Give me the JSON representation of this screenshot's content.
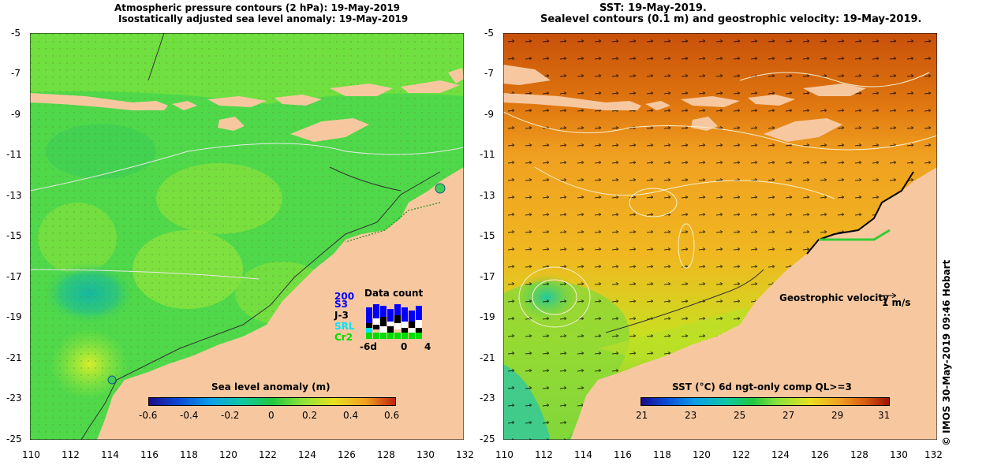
{
  "left": {
    "title_line1": "Atmospheric pressure contours (2 hPa): 19-May-2019",
    "title_line2": "Isostatically adjusted sea level anomaly: 19-May-2019",
    "colorbar_title": "Sea level anomaly (m)",
    "colorbar_ticks": [
      "-0.6",
      "-0.4",
      "-0.2",
      "0",
      "0.2",
      "0.4",
      "0.6"
    ],
    "inset": {
      "title": "Data count",
      "labels": [
        "200",
        "S3",
        "J-3",
        "SRL",
        "Cr2"
      ],
      "label_colors": [
        "#0000ff",
        "#0000ff",
        "#000000",
        "#00e5ff",
        "#00dd00"
      ],
      "x_ticks": [
        "-6d",
        "0",
        "4"
      ]
    }
  },
  "right": {
    "title_line1": "SST: 19-May-2019.",
    "title_line2": "Sealevel contours (0.1 m) and geostrophic velocity: 19-May-2019.",
    "colorbar_title": "SST (°C) 6d ngt-only comp QL>=3",
    "colorbar_ticks": [
      "21",
      "23",
      "25",
      "27",
      "29",
      "31"
    ],
    "velocity_legend": "Geostrophic velocity",
    "velocity_unit": "1 m/s"
  },
  "axes": {
    "y_ticks": [
      "-5",
      "-7",
      "-9",
      "-11",
      "-13",
      "-15",
      "-17",
      "-19",
      "-21",
      "-23",
      "-25"
    ],
    "x_ticks": [
      "110",
      "112",
      "114",
      "116",
      "118",
      "120",
      "122",
      "124",
      "126",
      "128",
      "130",
      "132"
    ]
  },
  "credit": "© IMOS 30-May-2019 09:46 Hobart",
  "colors": {
    "land": "#f7c8a0",
    "ocean_left": "#4fd84a",
    "ocean_right": "#f0a020"
  }
}
